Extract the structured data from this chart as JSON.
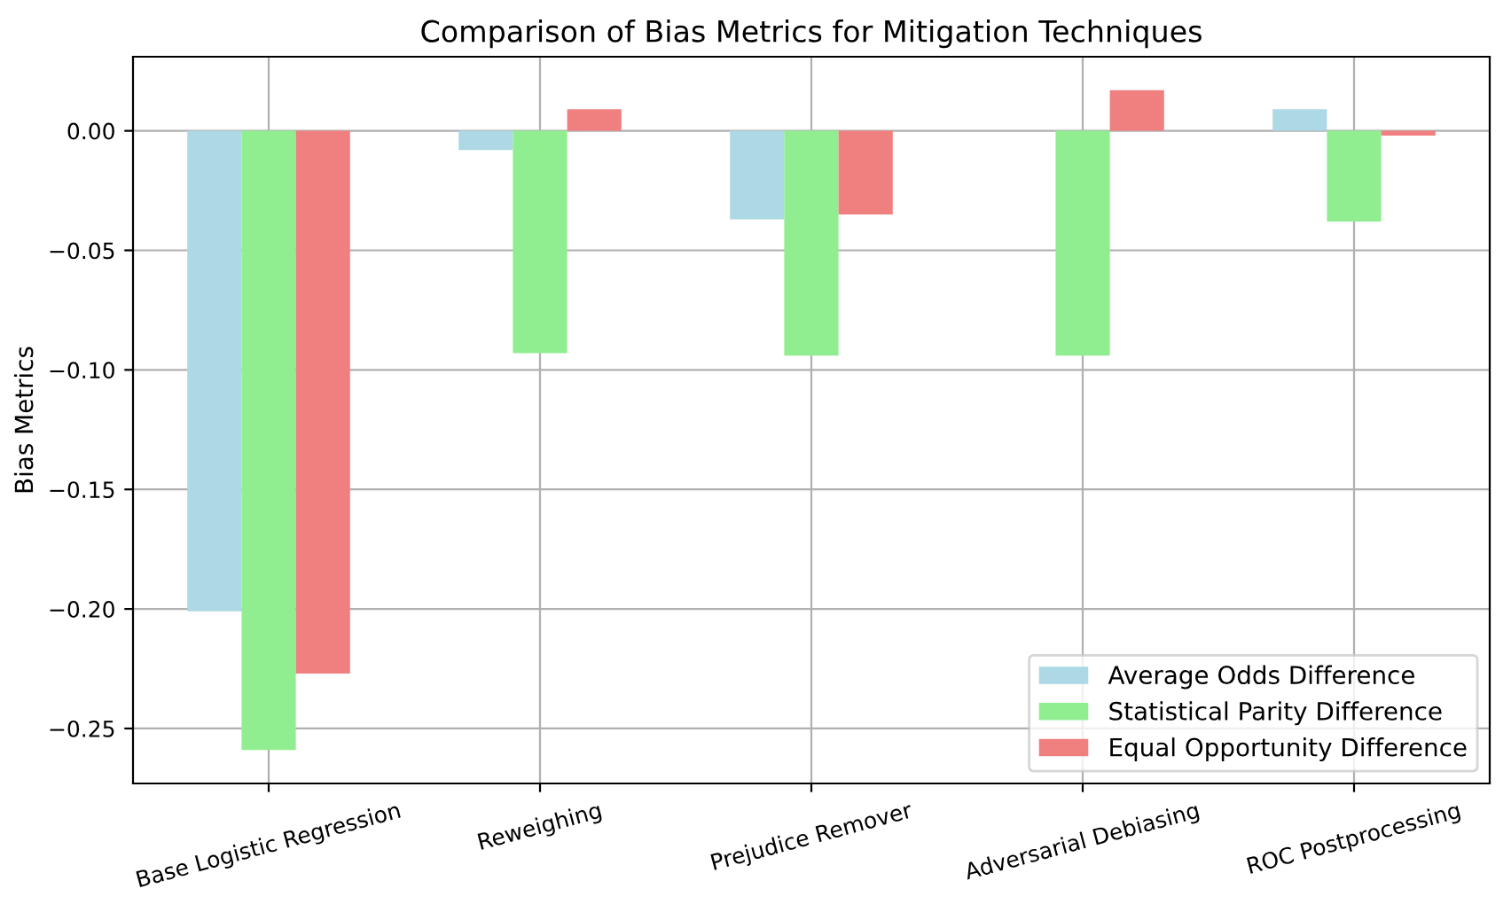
{
  "chart_data": {
    "type": "bar",
    "title": "Comparison of Bias Metrics for Mitigation Techniques",
    "ylabel": "Bias Metrics",
    "categories": [
      "Base Logistic Regression",
      "Reweighing",
      "Prejudice Remover",
      "Adversarial Debiasing",
      "ROC Postprocessing"
    ],
    "series": [
      {
        "name": "Average Odds Difference",
        "color": "#add8e6",
        "values": [
          -0.201,
          -0.008,
          -0.037,
          0.0,
          0.009
        ]
      },
      {
        "name": "Statistical Parity Difference",
        "color": "#90ee90",
        "values": [
          -0.259,
          -0.093,
          -0.094,
          -0.094,
          -0.038
        ]
      },
      {
        "name": "Equal Opportunity Difference",
        "color": "#f08080",
        "values": [
          -0.227,
          0.009,
          -0.035,
          0.017,
          -0.002
        ]
      }
    ],
    "ylim": [
      -0.273,
      0.031
    ],
    "yticks": [
      {
        "value": 0.0,
        "label": "0.00"
      },
      {
        "value": -0.05,
        "label": "−0.05"
      },
      {
        "value": -0.1,
        "label": "−0.10"
      },
      {
        "value": -0.15,
        "label": "−0.15"
      },
      {
        "value": -0.2,
        "label": "−0.20"
      },
      {
        "value": -0.25,
        "label": "−0.25"
      }
    ],
    "grid": true,
    "legend": "bottom right"
  }
}
